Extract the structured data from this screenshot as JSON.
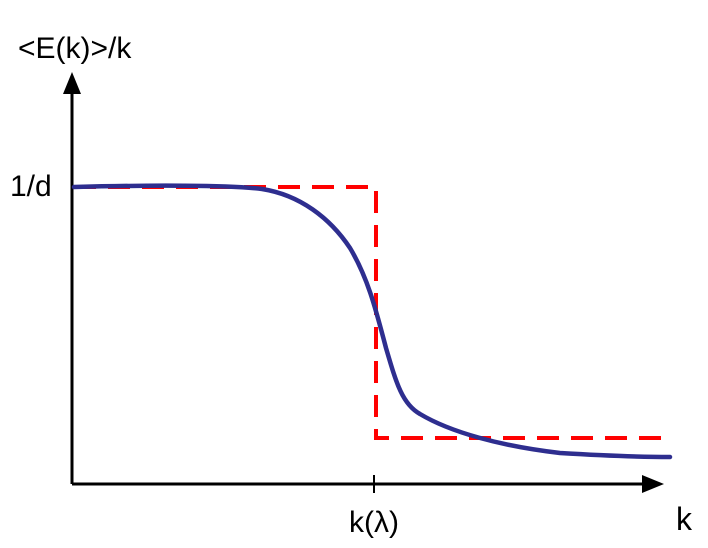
{
  "figure": {
    "y_axis_label": "<E(k)>/k",
    "x_axis_label": "k",
    "y_marker_label": "1/d",
    "x_marker_label": "k(λ)"
  },
  "colors": {
    "axis": "#000000",
    "smooth_curve": "#2e2e8f",
    "step_curve": "#ff0000"
  },
  "curves": {
    "smooth": {
      "name": "",
      "style": "solid",
      "color": "#2e2e8f"
    },
    "step": {
      "name": "",
      "style": "dashed",
      "color": "#ff0000"
    }
  },
  "arrows": {
    "x_axis_arrow_icon": "arrow-right-icon",
    "y_axis_arrow_icon": "arrow-up-icon"
  }
}
